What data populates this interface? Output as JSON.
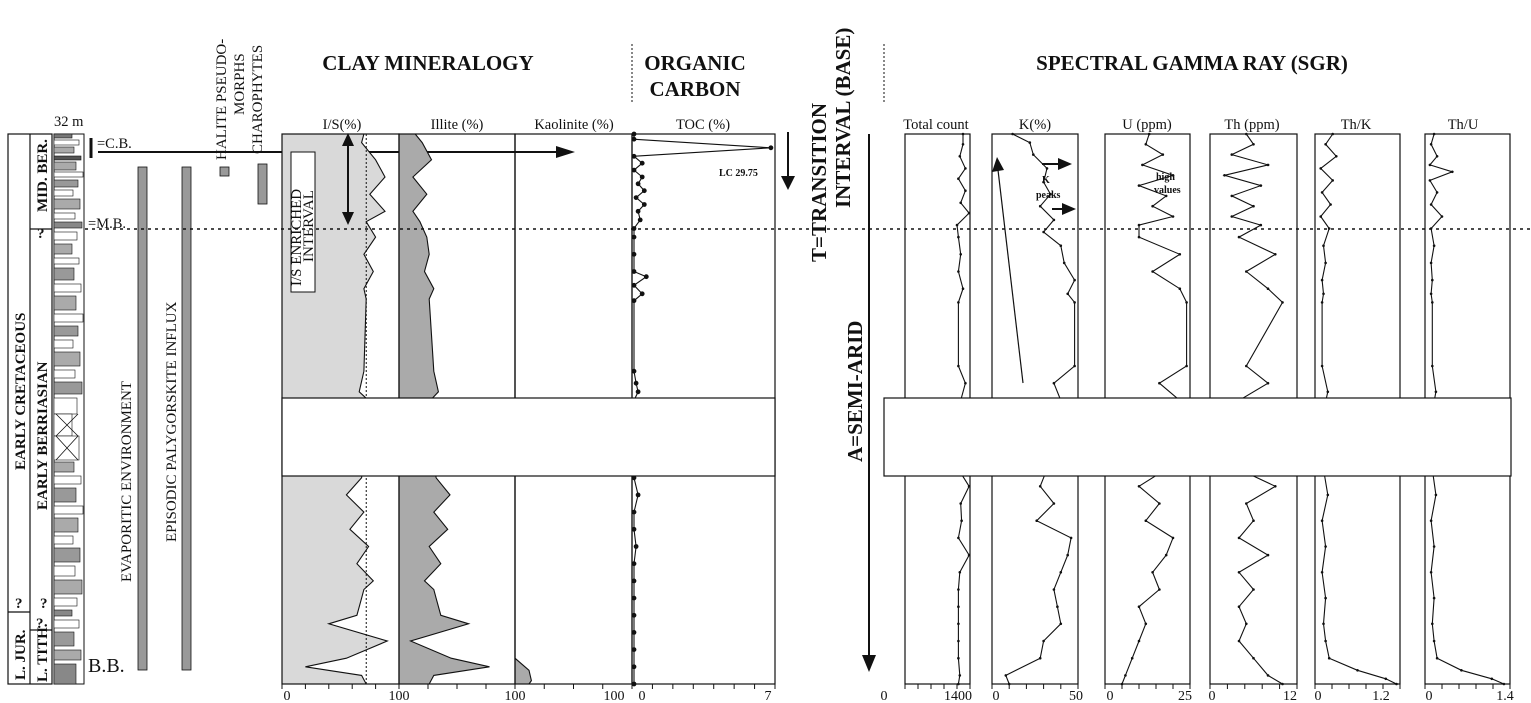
{
  "titles": {
    "clay": "CLAY MINERALOGY",
    "organic_1": "ORGANIC",
    "organic_2": "CARBON",
    "transition_1": "T=TRANSITION",
    "transition_2": "INTERVAL (BASE)",
    "sgr": "SPECTRAL GAMMA RAY (SGR)",
    "semiarid": "A=SEMI-ARID"
  },
  "log": {
    "thickness": "32  m",
    "cb": "=C.B.",
    "mb": "=M.B.",
    "bb": "B.B.",
    "q1": "?",
    "q2": "?",
    "q3": "?",
    "q4": "?",
    "stage_early_cretaceous": "EARLY CRETACEOUS",
    "stage_l_jur": "L. JUR.",
    "sub_mid_ber": "MID. BER.",
    "sub_early_berriasian": "EARLY BERRIASIAN",
    "sub_l_tith": "L. TITH."
  },
  "labels": {
    "halite_1": "HALITE PSEUDO-",
    "halite_2": "MORPHS",
    "charophytes": "CHAROPHYTES",
    "evaporitic": "EVAPORITIC ENVIRONMENT",
    "palygorskite": "EPISODIC PALYGORSKITE INFLUX",
    "is_1": "I/S ENRICHED",
    "is_2": "INTERVAL",
    "lc": "LC 29.75",
    "kpeaks_1": "K",
    "kpeaks_2": "peaks",
    "high_1": "high",
    "high_2": "values"
  },
  "colors": {
    "light_gray": "#d9d9d9",
    "mid_gray": "#aaaaaa",
    "dark": "#111111"
  },
  "chart_data": [
    {
      "type": "area",
      "panel": "clay",
      "columns": [
        "I/S(%)",
        "Illite (%)",
        "Kaolinite (%)"
      ],
      "xticks": [
        "0",
        "100",
        "100",
        "100"
      ],
      "depth_unit": "m",
      "depth_range": [
        0,
        32
      ],
      "gap_m": [
        9.8,
        13.5
      ],
      "series": [
        {
          "name": "I/S(%)",
          "xlim": [
            0,
            100
          ],
          "depth": [
            0,
            0.5,
            1.5,
            2.5,
            3.5,
            4.5,
            5.1,
            6,
            7,
            8,
            9,
            9.6,
            13.8,
            15,
            16,
            17,
            18,
            19,
            20,
            21,
            22,
            23,
            24,
            25,
            26,
            26.5,
            27,
            28,
            28.5,
            29.5,
            30.5,
            31,
            31.5,
            32
          ],
          "values": [
            70,
            68,
            80,
            88,
            75,
            88,
            72,
            80,
            70,
            78,
            70,
            72,
            70,
            66,
            82,
            80,
            90,
            70,
            68,
            55,
            70,
            58,
            74,
            64,
            78,
            70,
            68,
            64,
            40,
            90,
            55,
            20,
            68,
            72
          ]
        },
        {
          "name": "Illite (%)",
          "xlim": [
            0,
            100
          ],
          "depth": [
            0,
            0.5,
            1.5,
            2.5,
            3.5,
            4.5,
            5.1,
            6,
            7,
            8,
            9,
            9.6,
            13.8,
            15,
            16,
            17,
            18,
            19,
            20,
            21,
            22,
            23,
            24,
            25,
            26,
            26.5,
            27,
            28,
            28.5,
            29.5,
            30.5,
            31,
            31.5,
            32
          ],
          "values": [
            14,
            20,
            28,
            12,
            24,
            12,
            18,
            24,
            26,
            22,
            30,
            26,
            30,
            34,
            20,
            22,
            12,
            30,
            32,
            44,
            30,
            42,
            26,
            36,
            22,
            30,
            32,
            36,
            60,
            10,
            45,
            78,
            30,
            26
          ]
        },
        {
          "name": "Kaolinite (%)",
          "xlim": [
            0,
            100
          ],
          "depth": [
            0,
            30.5,
            31.2,
            31.8,
            32
          ],
          "values": [
            0,
            0,
            12,
            14,
            12
          ]
        }
      ]
    },
    {
      "type": "line",
      "panel": "organic_carbon",
      "name": "TOC (%)",
      "xlim": [
        0,
        7
      ],
      "xticks": [
        "100",
        "0",
        "7"
      ],
      "depth": [
        0,
        0.3,
        0.8,
        1.3,
        1.7,
        2.1,
        2.5,
        2.9,
        3.3,
        3.7,
        4.1,
        4.5,
        5.0,
        5.5,
        6,
        7,
        8,
        8.3,
        8.8,
        9.3,
        9.7,
        13.8,
        14.5,
        15,
        15.5,
        16,
        17,
        18,
        19,
        20,
        21,
        22,
        23,
        24,
        25,
        26,
        27,
        28,
        29,
        30,
        31,
        32
      ],
      "values": [
        0.1,
        0.1,
        6.8,
        0.1,
        0.5,
        0.1,
        0.5,
        0.3,
        0.6,
        0.2,
        0.6,
        0.3,
        0.4,
        0.1,
        0.1,
        0.1,
        0.1,
        0.7,
        0.1,
        0.5,
        0.1,
        0.1,
        0.2,
        0.3,
        0.1,
        0.2,
        0.1,
        0.1,
        0.2,
        0.1,
        0.3,
        0.1,
        0.1,
        0.2,
        0.1,
        0.1,
        0.1,
        0.1,
        0.1,
        0.1,
        0.1,
        0.1
      ],
      "annotation": "LC 29.75"
    },
    {
      "type": "line",
      "panel": "spectral_gamma_ray",
      "columns": [
        {
          "name": "Total count",
          "xlim": [
            0,
            1400
          ],
          "xticks": [
            "0",
            "1400"
          ],
          "depth": [
            0,
            0.6,
            1.3,
            2,
            2.6,
            3.3,
            4,
            4.6,
            5.3,
            6,
            7,
            8,
            9,
            9.8,
            13.5,
            14.5,
            15.5,
            16.5,
            17.5,
            18.5,
            19.5,
            20.5,
            21.5,
            22.5,
            23.5,
            24.5,
            25.5,
            26.5,
            27.5,
            28.5,
            29.5,
            30.5,
            31.5,
            32
          ],
          "values": [
            1250,
            1250,
            1180,
            1300,
            1150,
            1300,
            1200,
            1380,
            1120,
            1150,
            1200,
            1150,
            1250,
            1150,
            1150,
            1300,
            1200,
            1380,
            1150,
            1350,
            1150,
            1380,
            1200,
            1220,
            1150,
            1380,
            1180,
            1150,
            1150,
            1150,
            1150,
            1150,
            1180,
            1150
          ]
        },
        {
          "name": "K(%)",
          "xlim": [
            0,
            50
          ],
          "xticks": [
            "0",
            "50"
          ],
          "depth": [
            0,
            0.5,
            1.2,
            2,
            2.8,
            3.5,
            4.2,
            5,
            5.7,
            6.5,
            7.5,
            8.5,
            9.3,
            9.8,
            13.5,
            14.5,
            15.5,
            16.5,
            17.5,
            18.5,
            19.5,
            20.5,
            21.5,
            22.5,
            23.5,
            24.5,
            25.5,
            26.5,
            27.5,
            28.5,
            29.5,
            30.5,
            31.5,
            32
          ],
          "values": [
            12,
            22,
            24,
            32,
            30,
            34,
            28,
            36,
            30,
            40,
            42,
            48,
            44,
            48,
            48,
            36,
            40,
            30,
            38,
            26,
            32,
            28,
            36,
            26,
            46,
            44,
            40,
            36,
            38,
            40,
            30,
            28,
            8,
            10
          ]
        },
        {
          "name": "U (ppm)",
          "xlim": [
            0,
            25
          ],
          "xticks": [
            "0",
            "25"
          ],
          "depth": [
            0,
            0.6,
            1.2,
            1.8,
            2.4,
            3,
            3.6,
            4.2,
            4.8,
            5.3,
            6,
            7,
            8,
            9,
            9.8,
            13.5,
            14.5,
            15.5,
            16.5,
            17.5,
            18.5,
            19.5,
            20.5,
            21.5,
            22.5,
            23.5,
            24.5,
            25.5,
            26.5,
            27.5,
            28.5,
            29.5,
            30.5,
            31.5,
            32
          ],
          "values": [
            13,
            12,
            17,
            11,
            20,
            10,
            18,
            14,
            20,
            10,
            10,
            22,
            14,
            22,
            24,
            24,
            16,
            22,
            14,
            19,
            12,
            18,
            10,
            16,
            12,
            20,
            18,
            14,
            16,
            10,
            12,
            10,
            8,
            6,
            5
          ]
        },
        {
          "name": "Th (ppm)",
          "xlim": [
            0,
            12
          ],
          "xticks": [
            "0",
            "12"
          ],
          "depth": [
            0,
            0.6,
            1.2,
            1.8,
            2.4,
            3,
            3.6,
            4.2,
            4.8,
            5.3,
            6,
            7,
            8,
            9,
            9.8,
            13.5,
            14.5,
            15.5,
            16.5,
            17.5,
            18.5,
            19.5,
            20.5,
            21.5,
            22.5,
            23.5,
            24.5,
            25.5,
            26.5,
            27.5,
            28.5,
            29.5,
            30.5,
            31.5,
            32
          ],
          "values": [
            5,
            6,
            3,
            8,
            2,
            7,
            3,
            6,
            3,
            7,
            4,
            9,
            5,
            8,
            10,
            5,
            8,
            4,
            9,
            4,
            7,
            4,
            9,
            5,
            6,
            4,
            8,
            4,
            6,
            4,
            5,
            4,
            6,
            8,
            10
          ]
        },
        {
          "name": "Th/K",
          "xlim": [
            0,
            1.2
          ],
          "xticks": [
            "0",
            "1.2"
          ],
          "depth": [
            0,
            0.6,
            1.3,
            2,
            2.7,
            3.4,
            4.1,
            4.8,
            5.5,
            6.5,
            7.5,
            8.5,
            9.3,
            9.8,
            13.5,
            15,
            16.5,
            18,
            19.5,
            21,
            22.5,
            24,
            25.5,
            27,
            28.5,
            29.5,
            30.5,
            31.2,
            31.7,
            32
          ],
          "values": [
            0.25,
            0.15,
            0.3,
            0.08,
            0.25,
            0.1,
            0.22,
            0.08,
            0.2,
            0.12,
            0.15,
            0.1,
            0.12,
            0.1,
            0.1,
            0.18,
            0.1,
            0.2,
            0.12,
            0.18,
            0.1,
            0.15,
            0.1,
            0.15,
            0.12,
            0.15,
            0.2,
            0.6,
            1.0,
            1.15
          ]
        },
        {
          "name": "Th/U",
          "xlim": [
            0,
            1.4
          ],
          "xticks": [
            "0",
            "1.4"
          ],
          "depth": [
            0,
            0.6,
            1.3,
            1.8,
            2.2,
            2.7,
            3.4,
            4.1,
            4.8,
            5.5,
            6.5,
            7.5,
            8.5,
            9.3,
            9.8,
            13.5,
            15,
            16.5,
            18,
            19.5,
            21,
            22.5,
            24,
            25.5,
            27,
            28.5,
            29.5,
            30.5,
            31.2,
            31.7,
            32
          ],
          "values": [
            0.15,
            0.1,
            0.2,
            0.08,
            0.45,
            0.08,
            0.2,
            0.1,
            0.28,
            0.1,
            0.15,
            0.1,
            0.12,
            0.1,
            0.12,
            0.12,
            0.18,
            0.1,
            0.2,
            0.12,
            0.18,
            0.1,
            0.15,
            0.1,
            0.15,
            0.12,
            0.15,
            0.2,
            0.6,
            1.1,
            1.3
          ]
        }
      ]
    }
  ]
}
